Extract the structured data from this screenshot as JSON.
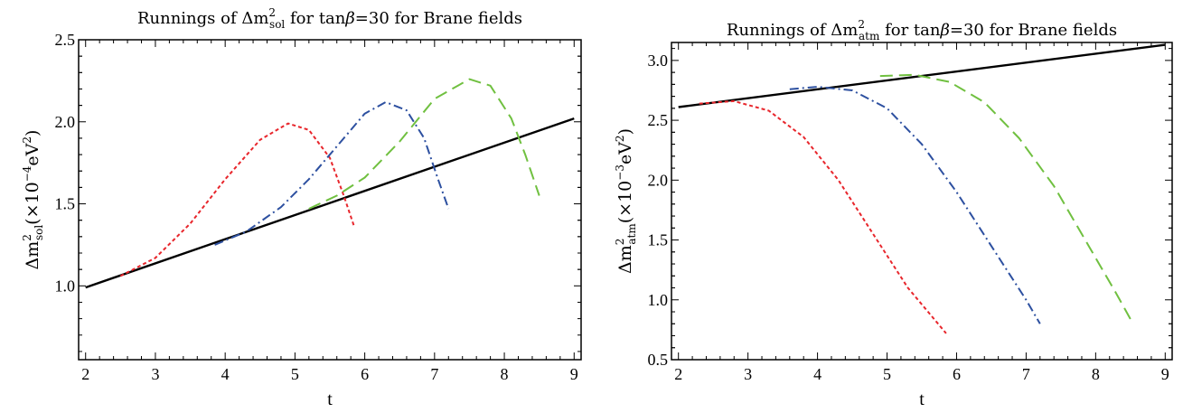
{
  "chart_data": [
    {
      "type": "line",
      "title": "Runnings of Δm²sol for tanβ=30 for Brane fields",
      "title_parts": {
        "pre": "Runnings of Δm",
        "sup": "2",
        "sub": "sol",
        "mid": " for tan",
        "beta": "β",
        "post": "=30 for Brane fields"
      },
      "xlabel": "t",
      "ylabel": "Δm²sol(×10⁻⁴eV²)",
      "ylabel_parts": {
        "pre": "Δm",
        "sup": "2",
        "sub": "sol",
        "post": "(×10",
        "exp": "−4",
        "unit": "eV",
        "unitexp": "2",
        "close": ")"
      },
      "xlim": [
        1.9,
        9.1
      ],
      "ylim": [
        0.55,
        2.5
      ],
      "xticks": [
        "2",
        "3",
        "4",
        "5",
        "6",
        "7",
        "8",
        "9"
      ],
      "yticks": [
        "1.0",
        "1.5",
        "2.0",
        "2.5"
      ],
      "grid": false,
      "series": [
        {
          "color": "#000000",
          "dash": "",
          "x": [
            2,
            9
          ],
          "y": [
            0.99,
            2.02
          ]
        },
        {
          "color": "#e8262c",
          "dash": "4 3",
          "x": [
            2.5,
            3.0,
            3.5,
            4.0,
            4.5,
            4.9,
            5.2,
            5.5,
            5.7,
            5.85
          ],
          "y": [
            1.06,
            1.17,
            1.38,
            1.65,
            1.89,
            1.99,
            1.95,
            1.78,
            1.55,
            1.36
          ]
        },
        {
          "color": "#2d50a0",
          "dash": "10 4 2 4",
          "x": [
            3.85,
            4.3,
            4.8,
            5.2,
            5.6,
            6.0,
            6.3,
            6.6,
            6.85,
            7.05,
            7.2
          ],
          "y": [
            1.25,
            1.33,
            1.48,
            1.65,
            1.85,
            2.05,
            2.12,
            2.07,
            1.9,
            1.65,
            1.47
          ]
        },
        {
          "color": "#70c040",
          "dash": "14 7",
          "x": [
            5.2,
            5.6,
            6.0,
            6.5,
            7.0,
            7.5,
            7.8,
            8.1,
            8.3,
            8.5
          ],
          "y": [
            1.47,
            1.55,
            1.66,
            1.88,
            2.14,
            2.26,
            2.22,
            2.02,
            1.8,
            1.55
          ]
        }
      ]
    },
    {
      "type": "line",
      "title": "Runnings of Δm²atm for tanβ=30 for Brane fields",
      "title_parts": {
        "pre": "Runnings of Δm",
        "sup": "2",
        "sub": "atm",
        "mid": " for tan",
        "beta": "β",
        "post": "=30 for Brane fields"
      },
      "xlabel": "t",
      "ylabel": "Δm²atm(×10⁻³eV²)",
      "ylabel_parts": {
        "pre": "Δm",
        "sup": "2",
        "sub": "atm",
        "post": "(×10",
        "exp": "−3",
        "unit": "eV",
        "unitexp": "2",
        "close": ")"
      },
      "xlim": [
        1.9,
        9.1
      ],
      "ylim": [
        0.5,
        3.15
      ],
      "xticks": [
        "2",
        "3",
        "4",
        "5",
        "6",
        "7",
        "8",
        "9"
      ],
      "yticks": [
        "0.5",
        "1.0",
        "1.5",
        "2.0",
        "2.5",
        "3.0"
      ],
      "grid": false,
      "series": [
        {
          "color": "#000000",
          "dash": "",
          "x": [
            2,
            9
          ],
          "y": [
            2.61,
            3.13
          ]
        },
        {
          "color": "#e8262c",
          "dash": "4 3",
          "x": [
            2.3,
            2.8,
            3.3,
            3.8,
            4.3,
            4.8,
            5.3,
            5.85
          ],
          "y": [
            2.64,
            2.66,
            2.58,
            2.36,
            2.0,
            1.55,
            1.1,
            0.72
          ]
        },
        {
          "color": "#2d50a0",
          "dash": "10 4 2 4",
          "x": [
            3.6,
            4.0,
            4.5,
            5.0,
            5.5,
            6.0,
            6.5,
            7.0,
            7.2
          ],
          "y": [
            2.76,
            2.78,
            2.75,
            2.6,
            2.3,
            1.9,
            1.45,
            1.0,
            0.8
          ]
        },
        {
          "color": "#70c040",
          "dash": "14 7",
          "x": [
            4.9,
            5.4,
            5.9,
            6.4,
            6.9,
            7.4,
            7.9,
            8.3,
            8.5
          ],
          "y": [
            2.87,
            2.88,
            2.82,
            2.65,
            2.35,
            1.95,
            1.45,
            1.05,
            0.84
          ]
        }
      ]
    }
  ]
}
